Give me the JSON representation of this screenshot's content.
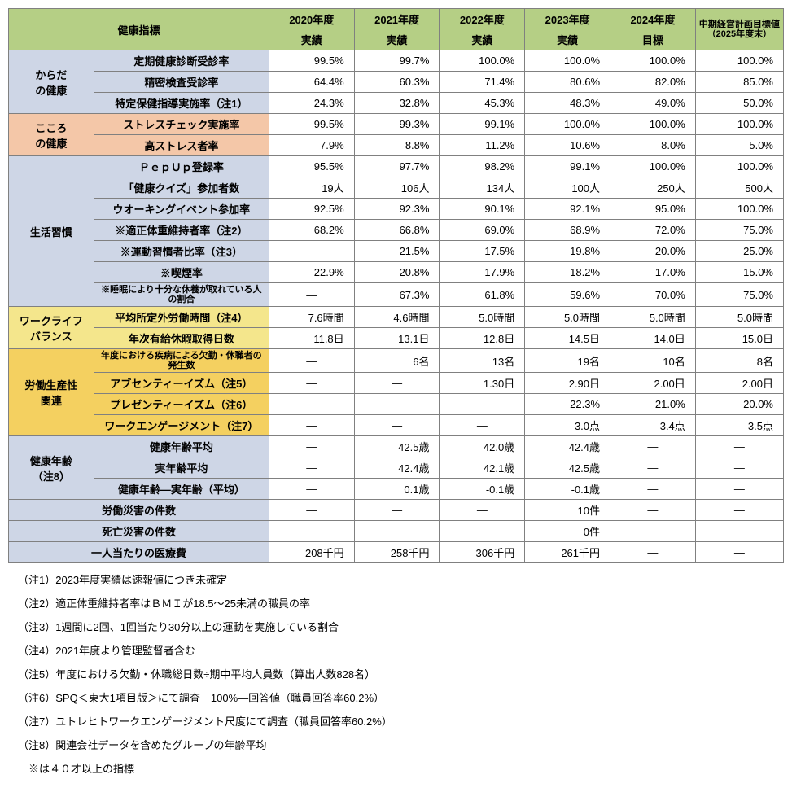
{
  "header": {
    "metric_label": "健康指標",
    "years": [
      {
        "top": "2020年度",
        "bottom": "実績"
      },
      {
        "top": "2021年度",
        "bottom": "実績"
      },
      {
        "top": "2022年度",
        "bottom": "実績"
      },
      {
        "top": "2023年度",
        "bottom": "実績"
      },
      {
        "top": "2024年度",
        "bottom": "目標"
      }
    ],
    "final_top": "中期経営計画目標値",
    "final_bottom": "（2025年度末）"
  },
  "cats": [
    {
      "name": "からだの健康",
      "name_l1": "からだ",
      "name_l2": "の健康",
      "class": "cat-blue",
      "rows": [
        {
          "label": "定期健康診断受診率",
          "v": [
            "99.5%",
            "99.7%",
            "100.0%",
            "100.0%",
            "100.0%",
            "100.0%"
          ]
        },
        {
          "label": "精密検査受診率",
          "v": [
            "64.4%",
            "60.3%",
            "71.4%",
            "80.6%",
            "82.0%",
            "85.0%"
          ]
        },
        {
          "label": "特定保健指導実施率（注1）",
          "v": [
            "24.3%",
            "32.8%",
            "45.3%",
            "48.3%",
            "49.0%",
            "50.0%"
          ]
        }
      ]
    },
    {
      "name": "こころの健康",
      "name_l1": "こころ",
      "name_l2": "の健康",
      "class": "cat-peach",
      "rows": [
        {
          "label": "ストレスチェック実施率",
          "v": [
            "99.5%",
            "99.3%",
            "99.1%",
            "100.0%",
            "100.0%",
            "100.0%"
          ]
        },
        {
          "label": "高ストレス者率",
          "v": [
            "7.9%",
            "8.8%",
            "11.2%",
            "10.6%",
            "8.0%",
            "5.0%"
          ]
        }
      ]
    },
    {
      "name": "生活習慣",
      "class": "cat-blue",
      "rows": [
        {
          "label": "ＰｅｐＵｐ登録率",
          "v": [
            "95.5%",
            "97.7%",
            "98.2%",
            "99.1%",
            "100.0%",
            "100.0%"
          ]
        },
        {
          "label": "「健康クイズ」参加者数",
          "v": [
            "19人",
            "106人",
            "134人",
            "100人",
            "250人",
            "500人"
          ]
        },
        {
          "label": "ウオーキングイベント参加率",
          "v": [
            "92.5%",
            "92.3%",
            "90.1%",
            "92.1%",
            "95.0%",
            "100.0%"
          ]
        },
        {
          "label": "※適正体重維持者率（注2）",
          "v": [
            "68.2%",
            "66.8%",
            "69.0%",
            "68.9%",
            "72.0%",
            "75.0%"
          ]
        },
        {
          "label": "※運動習慣者比率（注3）",
          "v": [
            "―",
            "21.5%",
            "17.5%",
            "19.8%",
            "20.0%",
            "25.0%"
          ]
        },
        {
          "label": "※喫煙率",
          "v": [
            "22.9%",
            "20.8%",
            "17.9%",
            "18.2%",
            "17.0%",
            "15.0%"
          ]
        },
        {
          "label": "※睡眠により十分な休養が取れている人の割合",
          "small": true,
          "v": [
            "―",
            "67.3%",
            "61.8%",
            "59.6%",
            "70.0%",
            "75.0%"
          ]
        }
      ]
    },
    {
      "name": "ワークライフバランス",
      "name_l1": "ワークライフ",
      "name_l2": "バランス",
      "class": "cat-lemon",
      "rows": [
        {
          "label": "平均所定外労働時間（注4）",
          "v": [
            "7.6時間",
            "4.6時間",
            "5.0時間",
            "5.0時間",
            "5.0時間",
            "5.0時間"
          ]
        },
        {
          "label": "年次有給休暇取得日数",
          "v": [
            "11.8日",
            "13.1日",
            "12.8日",
            "14.5日",
            "14.0日",
            "15.0日"
          ]
        }
      ]
    },
    {
      "name": "労働生産性関連",
      "name_l1": "労働生産性",
      "name_l2": "関連",
      "class": "cat-yellow",
      "rows": [
        {
          "label": "年度における疾病による欠勤・休職者の発生数",
          "small": true,
          "v": [
            "―",
            "6名",
            "13名",
            "19名",
            "10名",
            "8名"
          ]
        },
        {
          "label": "アブセンティーイズム（注5）",
          "v": [
            "―",
            "―",
            "1.30日",
            "2.90日",
            "2.00日",
            "2.00日"
          ]
        },
        {
          "label": "プレゼンティーイズム（注6）",
          "v": [
            "―",
            "―",
            "―",
            "22.3%",
            "21.0%",
            "20.0%"
          ]
        },
        {
          "label": "ワークエンゲージメント（注7）",
          "v": [
            "―",
            "―",
            "―",
            "3.0点",
            "3.4点",
            "3.5点"
          ]
        }
      ]
    },
    {
      "name": "健康年齢（注8）",
      "name_l1": "健康年齢",
      "name_l2": "（注8）",
      "class": "cat-blue",
      "rows": [
        {
          "label": "健康年齢平均",
          "v": [
            "―",
            "42.5歳",
            "42.0歳",
            "42.4歳",
            "―",
            "―"
          ]
        },
        {
          "label": "実年齢平均",
          "v": [
            "―",
            "42.4歳",
            "42.1歳",
            "42.5歳",
            "―",
            "―"
          ]
        },
        {
          "label": "健康年齢―実年齢（平均）",
          "v": [
            "―",
            "0.1歳",
            "-0.1歳",
            "-0.1歳",
            "―",
            "―"
          ]
        }
      ]
    }
  ],
  "spanrows": [
    {
      "label": "労働災害の件数",
      "class": "cat-blue",
      "v": [
        "―",
        "―",
        "―",
        "10件",
        "―",
        "―"
      ]
    },
    {
      "label": "死亡災害の件数",
      "class": "cat-blue",
      "v": [
        "―",
        "―",
        "―",
        "0件",
        "―",
        "―"
      ]
    },
    {
      "label": "一人当たりの医療費",
      "class": "cat-blue",
      "v": [
        "208千円",
        "258千円",
        "306千円",
        "261千円",
        "―",
        "―"
      ]
    }
  ],
  "notes": [
    "（注1）2023年度実績は速報値につき未確定",
    "（注2）適正体重維持者率はＢＭＩが18.5～25未満の職員の率",
    "（注3）1週間に2回、1回当たり30分以上の運動を実施している割合",
    "（注4）2021年度より管理監督者含む",
    "（注5）年度における欠勤・休職総日数÷期中平均人員数（算出人数828名）",
    "（注6）SPQ＜東大1項目版＞にて調査　100%―回答値（職員回答率60.2%）",
    "（注7）ユトレヒトワークエンゲージメント尺度にて調査（職員回答率60.2%）",
    "（注8）関連会社データを含めたグループの年齢平均",
    "　※は４０才以上の指標"
  ]
}
